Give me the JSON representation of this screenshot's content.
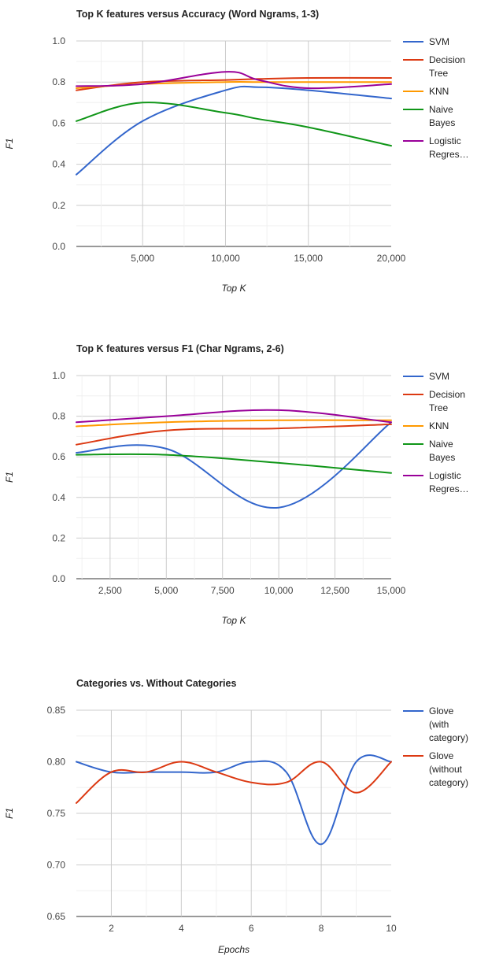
{
  "chart_data": [
    {
      "type": "line",
      "title": "Top K features versus Accuracy (Word Ngrams, 1-3)",
      "xlabel": "Top K",
      "ylabel": "F1",
      "xlim": [
        1000,
        20000
      ],
      "ylim": [
        0,
        1
      ],
      "xticks": [
        5000,
        10000,
        15000,
        20000
      ],
      "xtick_labels": [
        "5,000",
        "10,000",
        "15,000",
        "20,000"
      ],
      "yticks": [
        0,
        0.2,
        0.4,
        0.6,
        0.8,
        1.0
      ],
      "ytick_labels": [
        "0.0",
        "0.2",
        "0.4",
        "0.6",
        "0.8",
        "1.0"
      ],
      "grid": true,
      "legend_position": "right",
      "x": [
        1000,
        5000,
        10000,
        12000,
        15000,
        20000
      ],
      "series": [
        {
          "name": "SVM",
          "label_lines": [
            "SVM"
          ],
          "color": "#3366cc",
          "values": [
            0.35,
            0.61,
            0.76,
            0.775,
            0.76,
            0.72
          ]
        },
        {
          "name": "Decision Tree",
          "label_lines": [
            "Decision",
            "Tree"
          ],
          "color": "#dc3912",
          "values": [
            0.76,
            0.8,
            0.81,
            0.815,
            0.82,
            0.82
          ]
        },
        {
          "name": "KNN",
          "label_lines": [
            "KNN"
          ],
          "color": "#ff9900",
          "values": [
            0.77,
            0.79,
            0.8,
            0.8,
            0.8,
            0.8
          ]
        },
        {
          "name": "Naive Bayes",
          "label_lines": [
            "Naive",
            "Bayes"
          ],
          "color": "#109618",
          "values": [
            0.61,
            0.7,
            0.65,
            0.62,
            0.58,
            0.49
          ]
        },
        {
          "name": "Logistic Regres…",
          "label_lines": [
            "Logistic",
            "Regres…"
          ],
          "color": "#990099",
          "values": [
            0.78,
            0.79,
            0.85,
            0.81,
            0.77,
            0.79
          ]
        }
      ]
    },
    {
      "type": "line",
      "title": "Top K features versus F1 (Char Ngrams, 2-6)",
      "xlabel": "Top K",
      "ylabel": "F1",
      "xlim": [
        1000,
        15000
      ],
      "ylim": [
        0,
        1
      ],
      "xticks": [
        2500,
        5000,
        7500,
        10000,
        12500,
        15000
      ],
      "xtick_labels": [
        "2,500",
        "5,000",
        "7,500",
        "10,000",
        "12,500",
        "15,000"
      ],
      "yticks": [
        0,
        0.2,
        0.4,
        0.6,
        0.8,
        1.0
      ],
      "ytick_labels": [
        "0.0",
        "0.2",
        "0.4",
        "0.6",
        "0.8",
        "1.0"
      ],
      "grid": true,
      "legend_position": "right",
      "x": [
        1000,
        5000,
        10000,
        15000
      ],
      "series": [
        {
          "name": "SVM",
          "label_lines": [
            "SVM"
          ],
          "color": "#3366cc",
          "values": [
            0.62,
            0.64,
            0.35,
            0.77
          ]
        },
        {
          "name": "Decision Tree",
          "label_lines": [
            "Decision",
            "Tree"
          ],
          "color": "#dc3912",
          "values": [
            0.66,
            0.73,
            0.74,
            0.76
          ]
        },
        {
          "name": "KNN",
          "label_lines": [
            "KNN"
          ],
          "color": "#ff9900",
          "values": [
            0.75,
            0.77,
            0.78,
            0.78
          ]
        },
        {
          "name": "Naive Bayes",
          "label_lines": [
            "Naive",
            "Bayes"
          ],
          "color": "#109618",
          "values": [
            0.61,
            0.61,
            0.57,
            0.52
          ]
        },
        {
          "name": "Logistic Regres…",
          "label_lines": [
            "Logistic",
            "Regres…"
          ],
          "color": "#990099",
          "values": [
            0.77,
            0.8,
            0.83,
            0.77
          ]
        }
      ]
    },
    {
      "type": "line",
      "title": "Categories vs. Without Categories",
      "xlabel": "Epochs",
      "ylabel": "F1",
      "xlim": [
        1,
        10
      ],
      "ylim": [
        0.65,
        0.85
      ],
      "xticks": [
        2,
        4,
        6,
        8,
        10
      ],
      "xtick_labels": [
        "2",
        "4",
        "6",
        "8",
        "10"
      ],
      "yticks": [
        0.65,
        0.7,
        0.75,
        0.8,
        0.85
      ],
      "ytick_labels": [
        "0.65",
        "0.70",
        "0.75",
        "0.80",
        "0.85"
      ],
      "grid": true,
      "legend_position": "right",
      "x": [
        1,
        2,
        3,
        4,
        5,
        6,
        7,
        8,
        9,
        10
      ],
      "series": [
        {
          "name": "Glove (with category)",
          "label_lines": [
            "Glove",
            "(with",
            "category)"
          ],
          "color": "#3366cc",
          "values": [
            0.8,
            0.79,
            0.79,
            0.79,
            0.79,
            0.8,
            0.79,
            0.72,
            0.8,
            0.8
          ]
        },
        {
          "name": "Glove (without category)",
          "label_lines": [
            "Glove",
            "(without",
            "category)"
          ],
          "color": "#dc3912",
          "values": [
            0.76,
            0.79,
            0.79,
            0.8,
            0.79,
            0.78,
            0.78,
            0.8,
            0.77,
            0.8
          ]
        }
      ]
    }
  ]
}
